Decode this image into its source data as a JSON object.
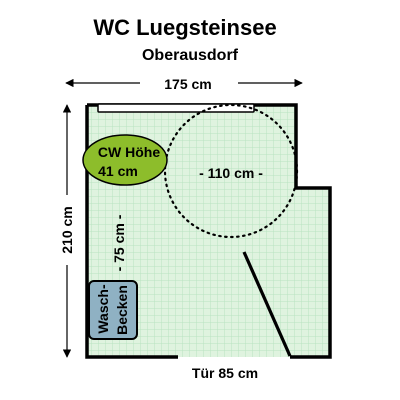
{
  "title": "WC Luegsteinsee",
  "subtitle": "Oberausdorf",
  "dimensions": {
    "width": "175 cm",
    "height": "210 cm",
    "turning_circle": "- 110 cm -",
    "basin_distance": "- 75 cm -",
    "door": "Tür 85 cm"
  },
  "toilet": {
    "line1": "CW Höhe",
    "line2": "41 cm"
  },
  "washbasin": {
    "line1": "Wasch-",
    "line2": "Becken"
  },
  "colors": {
    "floor": "#dff3df",
    "grid": "#b8e3c0",
    "wall": "#000000",
    "toilet": "#8dbd2b",
    "washbasin": "#8fb1c3"
  }
}
